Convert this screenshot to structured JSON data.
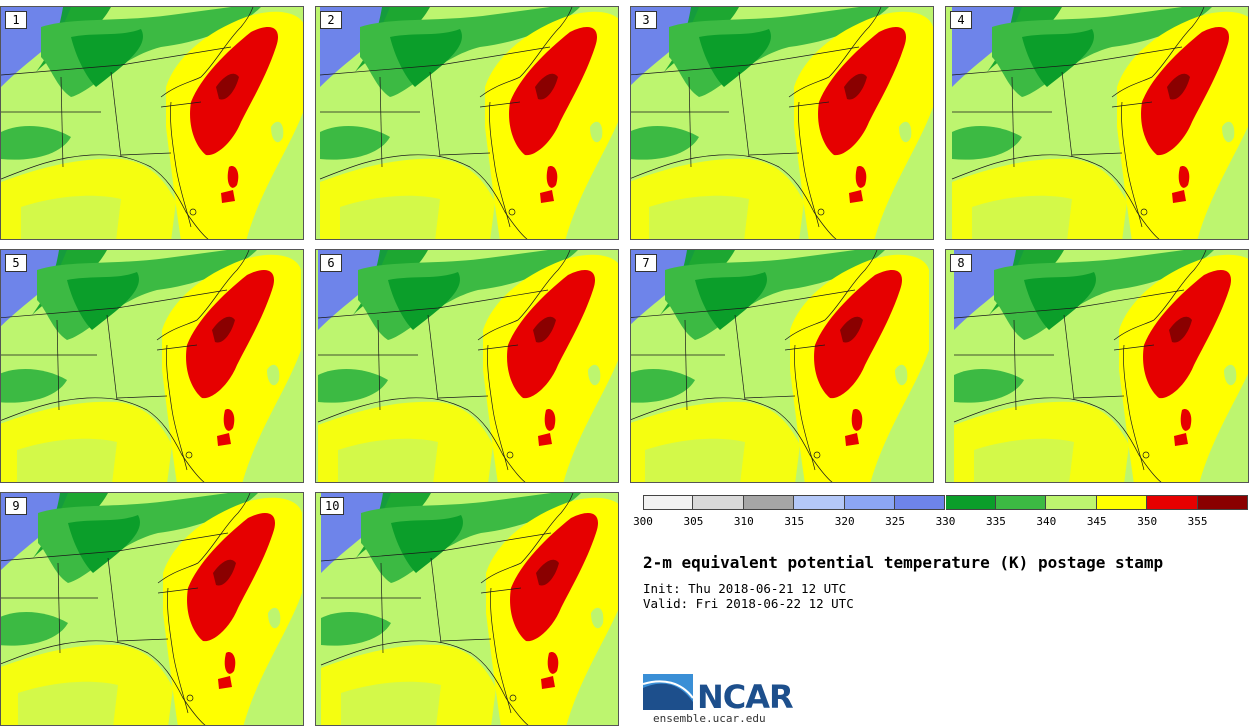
{
  "panels": [
    {
      "num": "1"
    },
    {
      "num": "2"
    },
    {
      "num": "3"
    },
    {
      "num": "4"
    },
    {
      "num": "5"
    },
    {
      "num": "6"
    },
    {
      "num": "7"
    },
    {
      "num": "8"
    },
    {
      "num": "9"
    },
    {
      "num": "10"
    }
  ],
  "colorbar": {
    "levels": [
      "300",
      "305",
      "310",
      "315",
      "320",
      "325",
      "330",
      "335",
      "340",
      "345",
      "350",
      "355"
    ],
    "colors": [
      "#f2f2f2",
      "#d9d9d9",
      "#a6a6a6",
      "#b4c8f8",
      "#8ca6f4",
      "#6e84ea",
      "#0b9e2a",
      "#3cba43",
      "#bdf56f",
      "#ffff00",
      "#e60000",
      "#8a0000"
    ]
  },
  "title": "2-m equivalent potential temperature (K) postage stamp",
  "init": "Init: Thu 2018-06-21 12 UTC",
  "valid": "Valid: Fri 2018-06-22 12 UTC",
  "logo": {
    "text": "NCAR",
    "url": "ensemble.ucar.edu"
  }
}
